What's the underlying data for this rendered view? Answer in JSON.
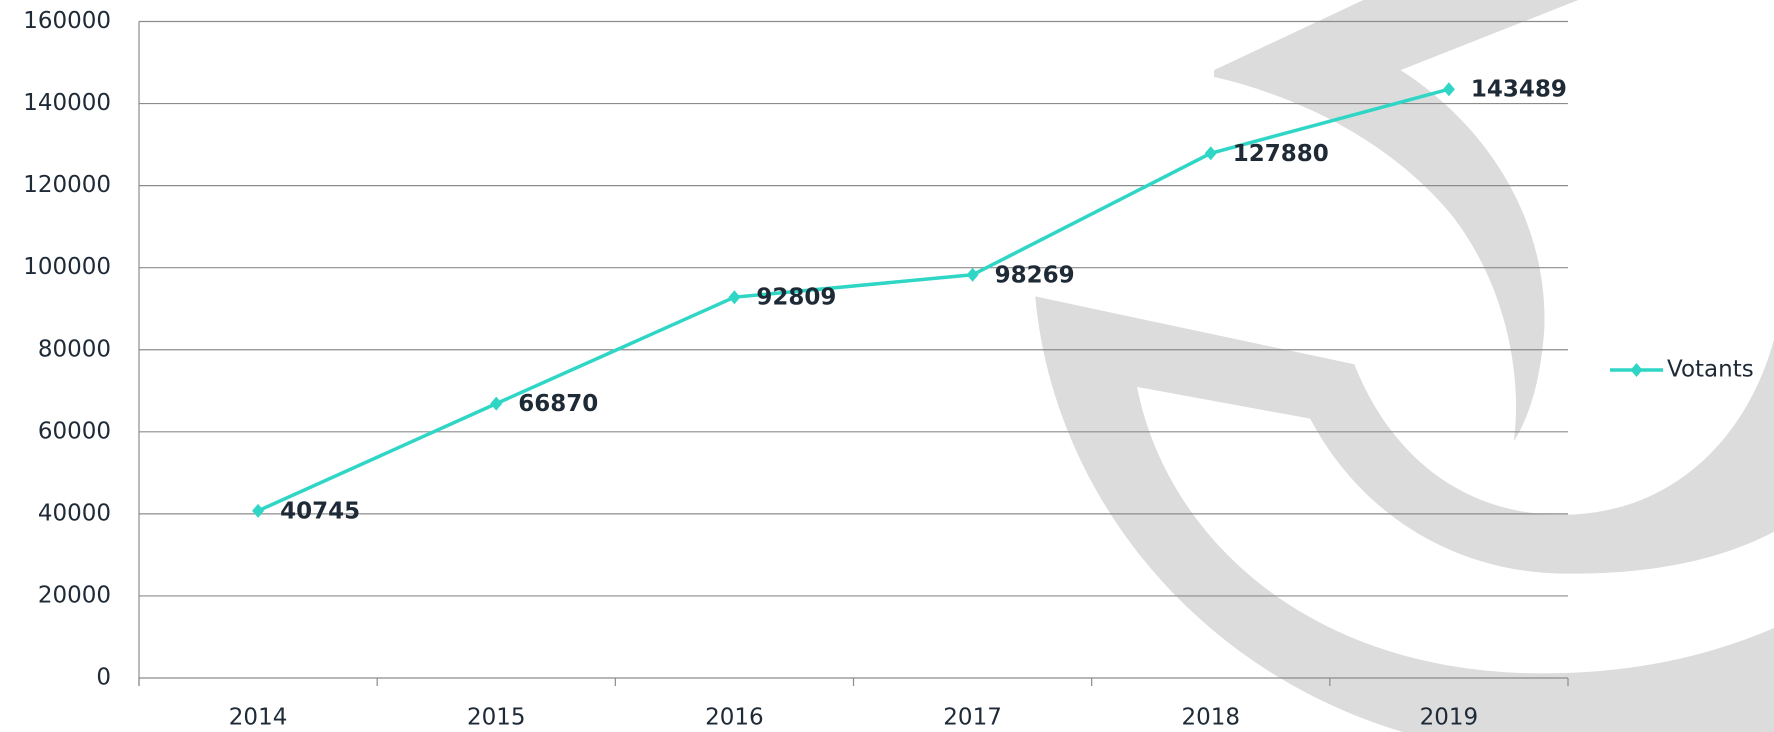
{
  "chart_data": {
    "type": "line",
    "categories": [
      "2014",
      "2015",
      "2016",
      "2017",
      "2018",
      "2019"
    ],
    "series": [
      {
        "name": "Votants",
        "color": "#2fd6c6",
        "values": [
          40745,
          66870,
          92809,
          98269,
          127880,
          143489
        ]
      }
    ],
    "ylim": [
      0,
      160000
    ],
    "yticks": [
      0,
      20000,
      40000,
      60000,
      80000,
      100000,
      120000,
      140000,
      160000
    ],
    "grid": true,
    "legend": "right",
    "data_labels": true
  }
}
